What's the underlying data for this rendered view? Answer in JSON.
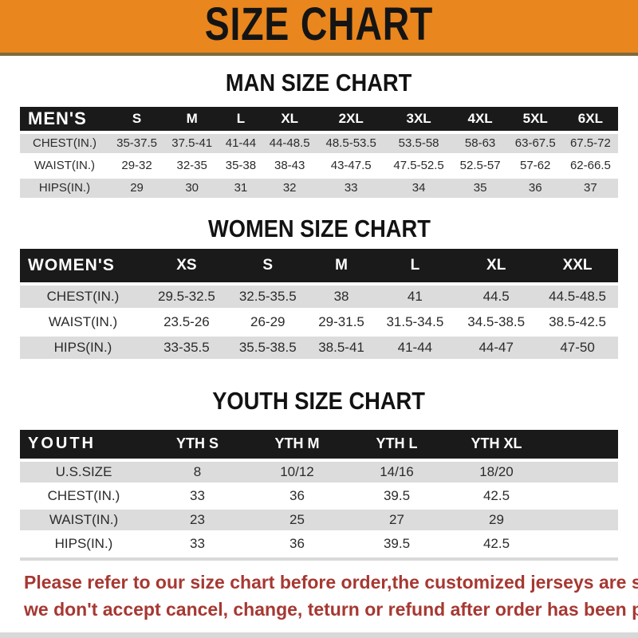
{
  "banner": {
    "title": "SIZE CHART",
    "bg_color": "#E9861D",
    "text_color": "#141414"
  },
  "sections": [
    {
      "heading": "MAN SIZE CHART",
      "chart_index": 0
    },
    {
      "heading": "WOMEN SIZE CHART",
      "chart_index": 1
    },
    {
      "heading": "YOUTH SIZE CHART",
      "chart_index": 2
    }
  ],
  "chart_data": [
    {
      "type": "table",
      "title": "MAN SIZE CHART",
      "corner_label": "MEN'S",
      "columns": [
        "S",
        "M",
        "L",
        "XL",
        "2XL",
        "3XL",
        "4XL",
        "5XL",
        "6XL"
      ],
      "rows": [
        {
          "label": "CHEST(IN.)",
          "values": [
            "35-37.5",
            "37.5-41",
            "41-44",
            "44-48.5",
            "48.5-53.5",
            "53.5-58",
            "58-63",
            "63-67.5",
            "67.5-72"
          ]
        },
        {
          "label": "WAIST(IN.)",
          "values": [
            "29-32",
            "32-35",
            "35-38",
            "38-43",
            "43-47.5",
            "47.5-52.5",
            "52.5-57",
            "57-62",
            "62-66.5"
          ]
        },
        {
          "label": "HIPS(IN.)",
          "values": [
            "29",
            "30",
            "31",
            "32",
            "33",
            "34",
            "35",
            "36",
            "37"
          ]
        }
      ]
    },
    {
      "type": "table",
      "title": "WOMEN SIZE CHART",
      "corner_label": "WOMEN'S",
      "columns": [
        "XS",
        "S",
        "M",
        "L",
        "XL",
        "XXL"
      ],
      "rows": [
        {
          "label": "CHEST(IN.)",
          "values": [
            "29.5-32.5",
            "32.5-35.5",
            "38",
            "41",
            "44.5",
            "44.5-48.5"
          ]
        },
        {
          "label": "WAIST(IN.)",
          "values": [
            "23.5-26",
            "26-29",
            "29-31.5",
            "31.5-34.5",
            "34.5-38.5",
            "38.5-42.5"
          ]
        },
        {
          "label": "HIPS(IN.)",
          "values": [
            "33-35.5",
            "35.5-38.5",
            "38.5-41",
            "41-44",
            "44-47",
            "47-50"
          ]
        }
      ]
    },
    {
      "type": "table",
      "title": "YOUTH SIZE CHART",
      "corner_label": "YOUTH",
      "columns": [
        "YTH S",
        "YTH M",
        "YTH L",
        "YTH XL"
      ],
      "rows": [
        {
          "label": "U.S.SIZE",
          "values": [
            "8",
            "10/12",
            "14/16",
            "18/20"
          ]
        },
        {
          "label": "CHEST(IN.)",
          "values": [
            "33",
            "36",
            "39.5",
            "42.5"
          ]
        },
        {
          "label": "WAIST(IN.)",
          "values": [
            "23",
            "25",
            "27",
            "29"
          ]
        },
        {
          "label": "HIPS(IN.)",
          "values": [
            "33",
            "36",
            "39.5",
            "42.5"
          ]
        }
      ]
    }
  ],
  "footer": {
    "line1": "Please refer to our size chart before order,the customized jerseys are special products,",
    "line2": "we don't accept cancel, change, teturn or refund after order has been placed!",
    "text_color": "#A63832"
  },
  "colors": {
    "banner_orange": "#E9861D",
    "banner_edge": "#7E6A3E",
    "header_bar_black": "#1A1A1A",
    "row_stripe_gray": "#DCDCDC",
    "disclaimer_red": "#A63832"
  }
}
